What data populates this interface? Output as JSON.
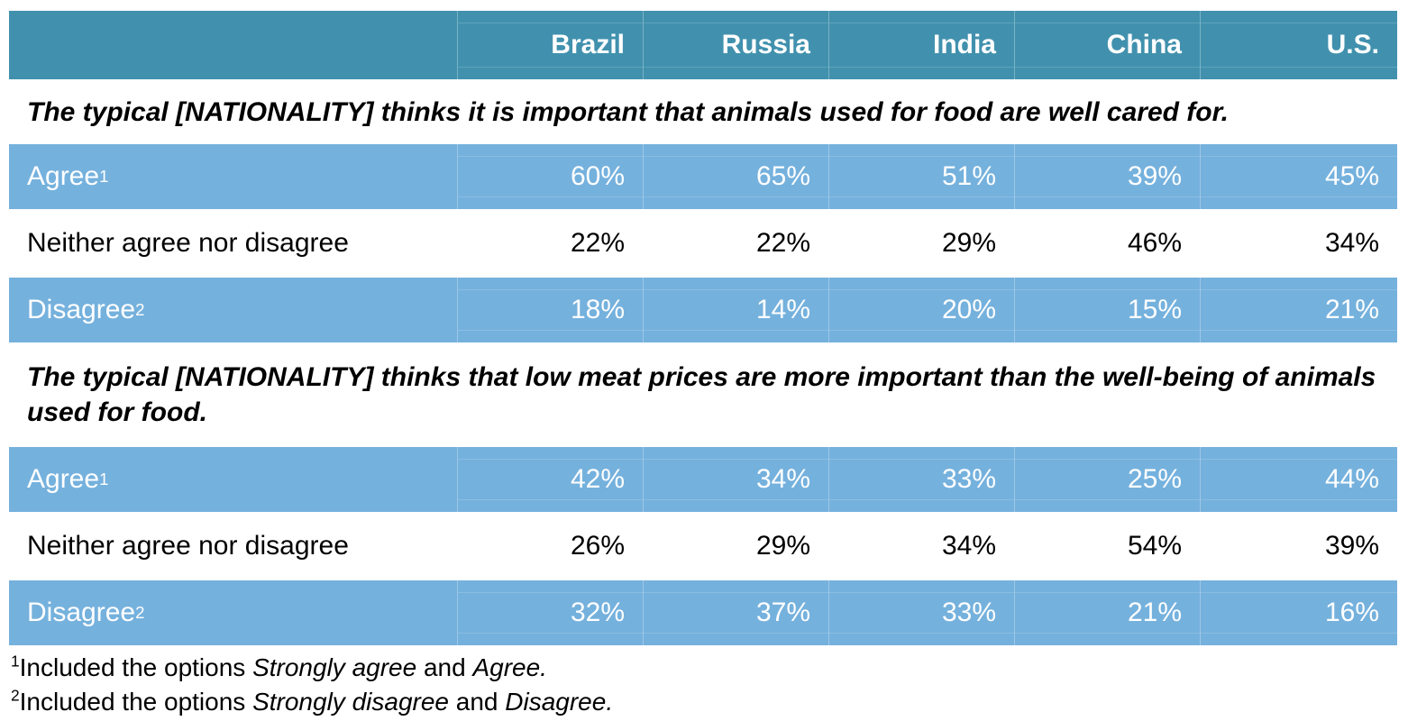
{
  "colors": {
    "page_bg": "#FFFFFF",
    "header_bg": "#4191AE",
    "header_text": "#FFFFFF",
    "shaded_row_bg": "#75B1DD",
    "shaded_row_text": "#FFFFFF",
    "body_text": "#000000"
  },
  "table": {
    "columns": [
      "Brazil",
      "Russia",
      "India",
      "China",
      "U.S."
    ],
    "sections": [
      {
        "title": "The typical [NATIONALITY] thinks it is important that animals used for food are well cared for.",
        "rows": [
          {
            "label": "Agree",
            "sup": "1",
            "values": [
              "60%",
              "65%",
              "51%",
              "39%",
              "45%"
            ]
          },
          {
            "label": "Neither agree nor disagree",
            "sup": "",
            "values": [
              "22%",
              "22%",
              "29%",
              "46%",
              "34%"
            ]
          },
          {
            "label": "Disagree",
            "sup": "2",
            "values": [
              "18%",
              "14%",
              "20%",
              "15%",
              "21%"
            ]
          }
        ]
      },
      {
        "title": "The typical [NATIONALITY] thinks that low meat prices are more important than the well-being of animals used for food.",
        "rows": [
          {
            "label": "Agree",
            "sup": "1",
            "values": [
              "42%",
              "34%",
              "33%",
              "25%",
              "44%"
            ]
          },
          {
            "label": "Neither agree nor disagree",
            "sup": "",
            "values": [
              "26%",
              "29%",
              "34%",
              "54%",
              "39%"
            ]
          },
          {
            "label": "Disagree",
            "sup": "2",
            "values": [
              "32%",
              "37%",
              "33%",
              "21%",
              "16%"
            ]
          }
        ]
      }
    ]
  },
  "footnotes": [
    {
      "sup": "1",
      "lead": "Included the options ",
      "italic_a": "Strongly agree",
      "mid": " and ",
      "italic_b": "Agree."
    },
    {
      "sup": "2",
      "lead": "Included the options ",
      "italic_a": "Strongly disagree",
      "mid": " and ",
      "italic_b": "Disagree."
    }
  ],
  "chart_data": {
    "type": "table",
    "columns": [
      "",
      "Brazil",
      "Russia",
      "India",
      "China",
      "U.S."
    ],
    "sections": [
      {
        "title": "The typical [NATIONALITY] thinks it is important that animals used for food are well cared for.",
        "rows": [
          [
            "Agree¹",
            "60%",
            "65%",
            "51%",
            "39%",
            "45%"
          ],
          [
            "Neither agree nor disagree",
            "22%",
            "22%",
            "29%",
            "46%",
            "34%"
          ],
          [
            "Disagree²",
            "18%",
            "14%",
            "20%",
            "15%",
            "21%"
          ]
        ]
      },
      {
        "title": "The typical [NATIONALITY] thinks that low meat prices are more important than the well-being of animals used for food.",
        "rows": [
          [
            "Agree¹",
            "42%",
            "34%",
            "33%",
            "25%",
            "44%"
          ],
          [
            "Neither agree nor disagree",
            "26%",
            "29%",
            "34%",
            "54%",
            "39%"
          ],
          [
            "Disagree²",
            "32%",
            "37%",
            "33%",
            "21%",
            "16%"
          ]
        ]
      }
    ],
    "footnotes": [
      "¹Included the options Strongly agree and Agree.",
      "²Included the options Strongly disagree and Disagree."
    ]
  }
}
